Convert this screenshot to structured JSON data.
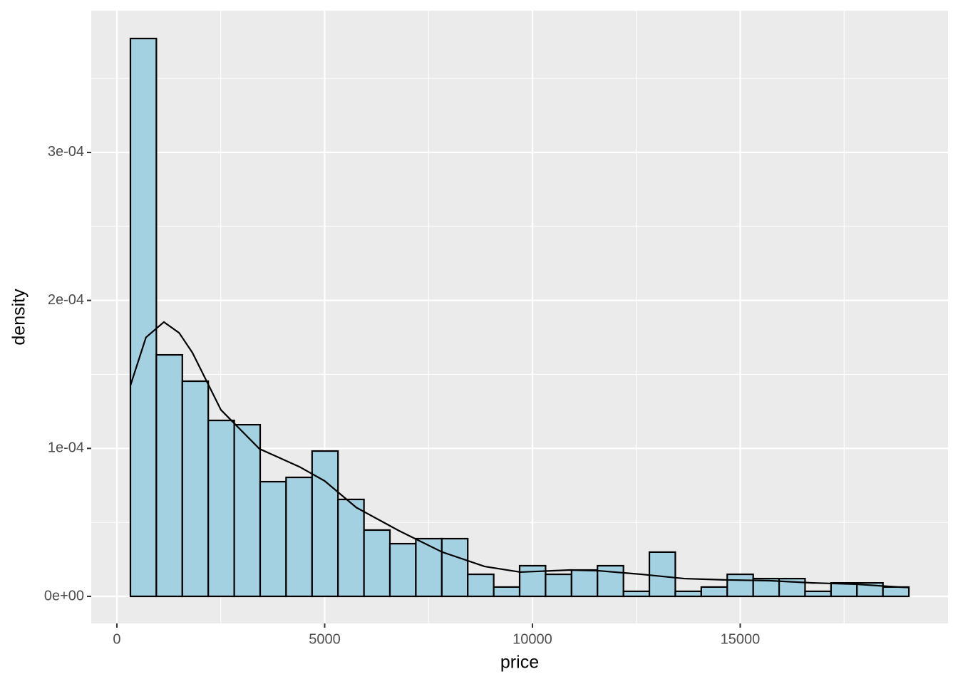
{
  "chart_data": {
    "type": "histogram",
    "x_label": "price",
    "y_label": "density",
    "bins": [
      326,
      950,
      1575,
      2199,
      2824,
      3448,
      4072,
      4697,
      5321,
      5946,
      6570,
      7194,
      7819,
      8443,
      9068,
      9692,
      10316,
      10941,
      11565,
      12190,
      12814,
      13438,
      14063,
      14687,
      15312,
      15936,
      16560,
      17185,
      17809,
      18434,
      19058
    ],
    "values": [
      0.000377,
      0.0001632,
      0.0001454,
      0.0001189,
      0.000116,
      7.75e-05,
      8.04e-05,
      9.82e-05,
      6.55e-05,
      4.48e-05,
      3.56e-05,
      3.9e-05,
      3.9e-05,
      1.49e-05,
      6.3e-06,
      2.07e-05,
      1.49e-05,
      1.78e-05,
      2.07e-05,
      3.4e-06,
      2.99e-05,
      3.4e-06,
      6.3e-06,
      1.49e-05,
      1.2e-05,
      1.2e-05,
      3.4e-06,
      9.1e-06,
      9.1e-06,
      6.3e-06
    ],
    "color": "#a3d1e2",
    "edge_color": "#000000",
    "density": {
      "color": "#000000",
      "x": [
        326,
        700,
        1132,
        1500,
        1818,
        2504,
        3430,
        4391,
        5000,
        5763,
        6792,
        7822,
        8851,
        9708,
        10909,
        11595,
        12624,
        13654,
        14683,
        15712,
        16741,
        17770,
        18799,
        19058
      ],
      "values": [
        0.0001425,
        0.000175,
        0.0001854,
        0.000178,
        0.0001647,
        0.000126,
        9.97e-05,
        8.76e-05,
        7.8e-05,
        6e-05,
        4.43e-05,
        3e-05,
        2.02e-05,
        1.64e-05,
        1.78e-05,
        1.73e-05,
        1.49e-05,
        1.2e-05,
        1.11e-05,
        1.06e-05,
        9.1e-06,
        8.2e-06,
        6.3e-06,
        6e-06
      ]
    },
    "xlim": [
      -617,
      20000
    ],
    "ylim": [
      -1.83e-05,
      0.0003958
    ],
    "xticks": [
      0,
      5000,
      10000,
      15000
    ],
    "yticks": [
      {
        "value": 0,
        "label": "0e+00"
      },
      {
        "value": 0.0001,
        "label": "1e-04"
      },
      {
        "value": 0.0002,
        "label": "2e-04"
      },
      {
        "value": 0.0003,
        "label": "3e-04"
      }
    ],
    "grid": true
  }
}
